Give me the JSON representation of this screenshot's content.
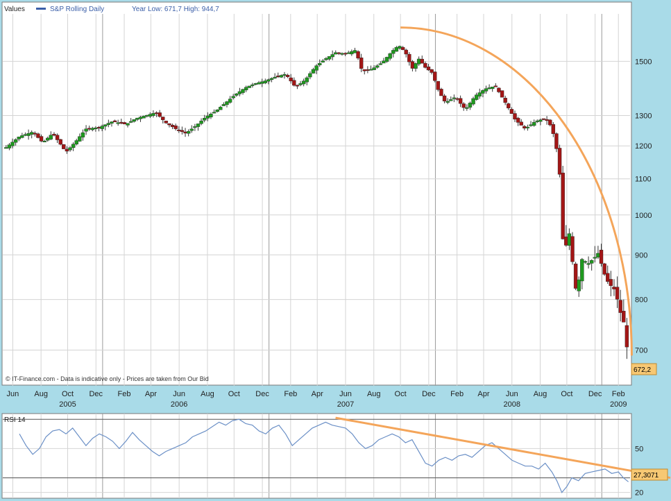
{
  "header": {
    "values_label": "Values",
    "series_label": "S&P Rolling Daily",
    "year_range": "Year Low: 671,7 High: 944,7"
  },
  "footer": {
    "disclaimer": "© IT-Finance.com - Data is indicative only - Prices are taken from Our Bid"
  },
  "colors": {
    "background": "#a9dbe8",
    "plot_bg": "#ffffff",
    "grid": "#d4d4d4",
    "year_line": "#9a9a9a",
    "up_candle": "#1f9a1f",
    "down_candle": "#a31616",
    "wick": "#333333",
    "trend_line": "#f4a55a",
    "rsi_line": "#6a8fc6",
    "last_value_bg": "#f7c873",
    "series_marker": "#3a5ea8"
  },
  "chart_data": [
    {
      "type": "candlestick",
      "title": "",
      "ylabel": "",
      "y_scale": "log",
      "ylim": [
        650,
        1700
      ],
      "yticks": [
        700,
        800,
        900,
        1000,
        1100,
        1200,
        1300,
        1500
      ],
      "xlim": [
        2005.4,
        2009.17
      ],
      "x_month_ticks": [
        {
          "x": 2005.46,
          "label": "Jun"
        },
        {
          "x": 2005.63,
          "label": "Aug"
        },
        {
          "x": 2005.79,
          "label": "Oct"
        },
        {
          "x": 2005.96,
          "label": "Dec"
        },
        {
          "x": 2006.13,
          "label": "Feb"
        },
        {
          "x": 2006.29,
          "label": "Apr"
        },
        {
          "x": 2006.46,
          "label": "Jun"
        },
        {
          "x": 2006.63,
          "label": "Aug"
        },
        {
          "x": 2006.79,
          "label": "Oct"
        },
        {
          "x": 2006.96,
          "label": "Dec"
        },
        {
          "x": 2007.13,
          "label": "Feb"
        },
        {
          "x": 2007.29,
          "label": "Apr"
        },
        {
          "x": 2007.46,
          "label": "Jun"
        },
        {
          "x": 2007.63,
          "label": "Aug"
        },
        {
          "x": 2007.79,
          "label": "Oct"
        },
        {
          "x": 2007.96,
          "label": "Dec"
        },
        {
          "x": 2008.13,
          "label": "Feb"
        },
        {
          "x": 2008.29,
          "label": "Apr"
        },
        {
          "x": 2008.46,
          "label": "Jun"
        },
        {
          "x": 2008.63,
          "label": "Aug"
        },
        {
          "x": 2008.79,
          "label": "Oct"
        },
        {
          "x": 2008.96,
          "label": "Dec"
        },
        {
          "x": 2009.1,
          "label": "Feb"
        }
      ],
      "x_year_labels": [
        {
          "x": 2005.79,
          "label": "2005"
        },
        {
          "x": 2006.46,
          "label": "2006"
        },
        {
          "x": 2007.46,
          "label": "2007"
        },
        {
          "x": 2008.46,
          "label": "2008"
        },
        {
          "x": 2009.1,
          "label": "2009"
        }
      ],
      "x_year_lines": [
        2006.0,
        2007.0,
        2008.0,
        2009.0
      ],
      "series": [
        {
          "name": "S&P Rolling Daily",
          "close_path": [
            [
              2005.42,
              1195
            ],
            [
              2005.5,
              1230
            ],
            [
              2005.58,
              1245
            ],
            [
              2005.64,
              1210
            ],
            [
              2005.7,
              1240
            ],
            [
              2005.78,
              1180
            ],
            [
              2005.84,
              1215
            ],
            [
              2005.9,
              1255
            ],
            [
              2005.98,
              1260
            ],
            [
              2006.06,
              1280
            ],
            [
              2006.14,
              1270
            ],
            [
              2006.2,
              1290
            ],
            [
              2006.26,
              1300
            ],
            [
              2006.32,
              1310
            ],
            [
              2006.38,
              1275
            ],
            [
              2006.44,
              1255
            ],
            [
              2006.5,
              1240
            ],
            [
              2006.56,
              1265
            ],
            [
              2006.62,
              1295
            ],
            [
              2006.68,
              1315
            ],
            [
              2006.74,
              1345
            ],
            [
              2006.8,
              1375
            ],
            [
              2006.86,
              1400
            ],
            [
              2006.92,
              1415
            ],
            [
              2006.98,
              1425
            ],
            [
              2007.04,
              1440
            ],
            [
              2007.1,
              1450
            ],
            [
              2007.16,
              1400
            ],
            [
              2007.22,
              1430
            ],
            [
              2007.28,
              1480
            ],
            [
              2007.34,
              1510
            ],
            [
              2007.4,
              1535
            ],
            [
              2007.46,
              1530
            ],
            [
              2007.52,
              1545
            ],
            [
              2007.56,
              1460
            ],
            [
              2007.62,
              1470
            ],
            [
              2007.68,
              1495
            ],
            [
              2007.74,
              1540
            ],
            [
              2007.78,
              1565
            ],
            [
              2007.82,
              1535
            ],
            [
              2007.86,
              1470
            ],
            [
              2007.9,
              1510
            ],
            [
              2007.94,
              1475
            ],
            [
              2007.98,
              1455
            ],
            [
              2008.02,
              1385
            ],
            [
              2008.06,
              1345
            ],
            [
              2008.12,
              1365
            ],
            [
              2008.18,
              1320
            ],
            [
              2008.24,
              1370
            ],
            [
              2008.3,
              1395
            ],
            [
              2008.36,
              1405
            ],
            [
              2008.42,
              1345
            ],
            [
              2008.48,
              1285
            ],
            [
              2008.54,
              1255
            ],
            [
              2008.6,
              1280
            ],
            [
              2008.66,
              1290
            ],
            [
              2008.7,
              1260
            ],
            [
              2008.73,
              1185
            ],
            [
              2008.75,
              1100
            ],
            [
              2008.77,
              900
            ],
            [
              2008.79,
              930
            ],
            [
              2008.81,
              960
            ],
            [
              2008.83,
              850
            ],
            [
              2008.85,
              810
            ],
            [
              2008.88,
              890
            ],
            [
              2008.92,
              880
            ],
            [
              2008.96,
              895
            ],
            [
              2008.98,
              905
            ],
            [
              2009.01,
              860
            ],
            [
              2009.04,
              835
            ],
            [
              2009.08,
              820
            ],
            [
              2009.11,
              775
            ],
            [
              2009.14,
              745
            ],
            [
              2009.16,
              672
            ]
          ]
        }
      ],
      "last_value": "672,2",
      "annotations": [
        {
          "type": "arc_trend",
          "note": "orange curve over the top of price"
        }
      ]
    },
    {
      "type": "line",
      "title": "RSI 14",
      "y_scale": "linear",
      "ylim": [
        17,
        72
      ],
      "yticks": [
        20,
        30,
        50
      ],
      "reference_lines": [
        30,
        70
      ],
      "xlim": [
        2005.4,
        2009.17
      ],
      "series": [
        {
          "name": "RSI 14",
          "points": [
            [
              2005.5,
              60
            ],
            [
              2005.54,
              52
            ],
            [
              2005.58,
              46
            ],
            [
              2005.62,
              50
            ],
            [
              2005.66,
              58
            ],
            [
              2005.7,
              62
            ],
            [
              2005.74,
              63
            ],
            [
              2005.78,
              60
            ],
            [
              2005.82,
              64
            ],
            [
              2005.86,
              58
            ],
            [
              2005.9,
              52
            ],
            [
              2005.94,
              57
            ],
            [
              2005.98,
              60
            ],
            [
              2006.02,
              58
            ],
            [
              2006.06,
              55
            ],
            [
              2006.1,
              50
            ],
            [
              2006.14,
              55
            ],
            [
              2006.18,
              61
            ],
            [
              2006.22,
              56
            ],
            [
              2006.26,
              52
            ],
            [
              2006.3,
              48
            ],
            [
              2006.34,
              45
            ],
            [
              2006.38,
              48
            ],
            [
              2006.42,
              50
            ],
            [
              2006.46,
              52
            ],
            [
              2006.5,
              54
            ],
            [
              2006.54,
              58
            ],
            [
              2006.58,
              60
            ],
            [
              2006.62,
              62
            ],
            [
              2006.66,
              65
            ],
            [
              2006.7,
              68
            ],
            [
              2006.74,
              66
            ],
            [
              2006.78,
              69
            ],
            [
              2006.82,
              70
            ],
            [
              2006.86,
              67
            ],
            [
              2006.9,
              66
            ],
            [
              2006.94,
              62
            ],
            [
              2006.98,
              60
            ],
            [
              2007.02,
              64
            ],
            [
              2007.06,
              66
            ],
            [
              2007.1,
              60
            ],
            [
              2007.14,
              52
            ],
            [
              2007.18,
              56
            ],
            [
              2007.22,
              60
            ],
            [
              2007.26,
              64
            ],
            [
              2007.3,
              66
            ],
            [
              2007.34,
              68
            ],
            [
              2007.38,
              66
            ],
            [
              2007.42,
              65
            ],
            [
              2007.46,
              64
            ],
            [
              2007.5,
              60
            ],
            [
              2007.54,
              54
            ],
            [
              2007.58,
              50
            ],
            [
              2007.62,
              52
            ],
            [
              2007.66,
              56
            ],
            [
              2007.7,
              58
            ],
            [
              2007.74,
              60
            ],
            [
              2007.78,
              58
            ],
            [
              2007.82,
              54
            ],
            [
              2007.86,
              56
            ],
            [
              2007.9,
              48
            ],
            [
              2007.94,
              40
            ],
            [
              2007.98,
              38
            ],
            [
              2008.02,
              42
            ],
            [
              2008.06,
              44
            ],
            [
              2008.1,
              42
            ],
            [
              2008.14,
              45
            ],
            [
              2008.18,
              46
            ],
            [
              2008.22,
              44
            ],
            [
              2008.26,
              48
            ],
            [
              2008.3,
              52
            ],
            [
              2008.34,
              54
            ],
            [
              2008.38,
              50
            ],
            [
              2008.42,
              46
            ],
            [
              2008.46,
              42
            ],
            [
              2008.5,
              40
            ],
            [
              2008.54,
              38
            ],
            [
              2008.58,
              38
            ],
            [
              2008.62,
              36
            ],
            [
              2008.66,
              40
            ],
            [
              2008.7,
              34
            ],
            [
              2008.73,
              28
            ],
            [
              2008.76,
              20
            ],
            [
              2008.79,
              24
            ],
            [
              2008.82,
              30
            ],
            [
              2008.86,
              28
            ],
            [
              2008.9,
              33
            ],
            [
              2008.94,
              34
            ],
            [
              2008.98,
              35
            ],
            [
              2009.02,
              36
            ],
            [
              2009.06,
              33
            ],
            [
              2009.1,
              34
            ],
            [
              2009.13,
              30
            ],
            [
              2009.16,
              27.3
            ]
          ]
        }
      ],
      "last_value": "27,3071"
    }
  ]
}
